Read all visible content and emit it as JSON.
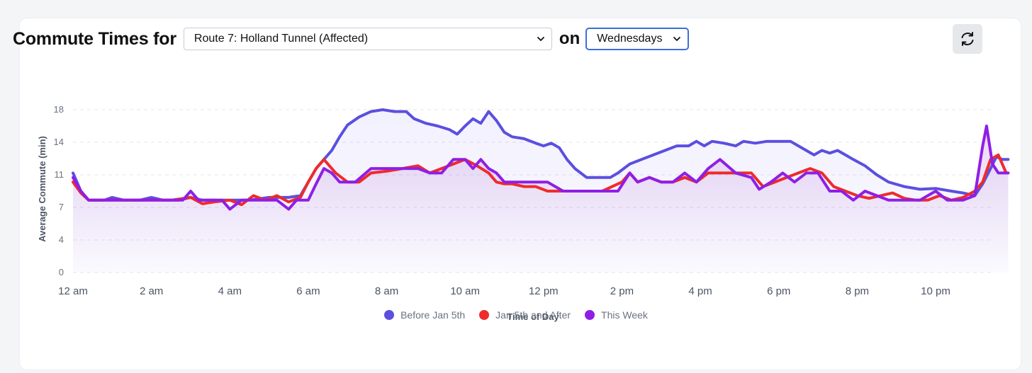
{
  "header": {
    "title": "Commute Times for",
    "route_value": "Route 7: Holland Tunnel (Affected)",
    "on_label": "on",
    "day_value": "Wednesdays"
  },
  "icons": {
    "chevron": "chevron-down-icon",
    "refresh": "refresh-icon"
  },
  "colors": {
    "before": "#5b4fe0",
    "after": "#ef2b2b",
    "this_week": "#8f1ee6",
    "grid": "#e3e4e8"
  },
  "chart_data": {
    "type": "line",
    "title": "Commute Times for Route 7: Holland Tunnel (Affected) on Wednesdays",
    "xlabel": "Time of Day",
    "ylabel": "Average Commute (min)",
    "ylim": [
      0,
      18
    ],
    "grid": true,
    "legend_position": "bottom-center",
    "y_ticks": [
      {
        "label": "0",
        "value": 0
      },
      {
        "label": "4",
        "value": 3.6
      },
      {
        "label": "7",
        "value": 7.2
      },
      {
        "label": "11",
        "value": 10.8
      },
      {
        "label": "14",
        "value": 14.4
      },
      {
        "label": "18",
        "value": 18
      }
    ],
    "x_ticks": [
      {
        "label": "12 am",
        "value": 0
      },
      {
        "label": "2 am",
        "value": 2
      },
      {
        "label": "4 am",
        "value": 4
      },
      {
        "label": "6 am",
        "value": 6
      },
      {
        "label": "8 am",
        "value": 8
      },
      {
        "label": "10 am",
        "value": 10
      },
      {
        "label": "12 pm",
        "value": 12
      },
      {
        "label": "2 pm",
        "value": 14
      },
      {
        "label": "4 pm",
        "value": 16
      },
      {
        "label": "6 pm",
        "value": 18
      },
      {
        "label": "8 pm",
        "value": 20
      },
      {
        "label": "10 pm",
        "value": 22
      }
    ],
    "x_range": [
      0,
      23.5
    ],
    "series": [
      {
        "name": "Before Jan 5th",
        "color": "#5b4fe0",
        "points": [
          [
            0.0,
            11.0
          ],
          [
            0.2,
            9.0
          ],
          [
            0.4,
            8.0
          ],
          [
            0.8,
            8.0
          ],
          [
            1.0,
            8.3
          ],
          [
            1.3,
            8.0
          ],
          [
            1.7,
            8.0
          ],
          [
            2.0,
            8.3
          ],
          [
            2.3,
            8.0
          ],
          [
            2.7,
            8.0
          ],
          [
            3.0,
            8.3
          ],
          [
            3.3,
            8.0
          ],
          [
            3.7,
            8.0
          ],
          [
            4.0,
            8.0
          ],
          [
            4.5,
            8.0
          ],
          [
            5.0,
            8.3
          ],
          [
            5.5,
            8.3
          ],
          [
            5.8,
            8.5
          ],
          [
            6.0,
            10.0
          ],
          [
            6.2,
            11.5
          ],
          [
            6.4,
            12.5
          ],
          [
            6.6,
            13.5
          ],
          [
            6.8,
            15.0
          ],
          [
            7.0,
            16.3
          ],
          [
            7.3,
            17.2
          ],
          [
            7.6,
            17.8
          ],
          [
            7.9,
            18.0
          ],
          [
            8.2,
            17.8
          ],
          [
            8.5,
            17.8
          ],
          [
            8.7,
            17.0
          ],
          [
            9.0,
            16.5
          ],
          [
            9.3,
            16.2
          ],
          [
            9.6,
            15.8
          ],
          [
            9.8,
            15.3
          ],
          [
            10.0,
            16.2
          ],
          [
            10.2,
            17.0
          ],
          [
            10.4,
            16.5
          ],
          [
            10.6,
            17.8
          ],
          [
            10.8,
            16.8
          ],
          [
            11.0,
            15.5
          ],
          [
            11.2,
            15.0
          ],
          [
            11.5,
            14.8
          ],
          [
            11.8,
            14.3
          ],
          [
            12.0,
            14.0
          ],
          [
            12.2,
            14.3
          ],
          [
            12.4,
            13.8
          ],
          [
            12.6,
            12.5
          ],
          [
            12.8,
            11.5
          ],
          [
            13.1,
            10.5
          ],
          [
            13.4,
            10.5
          ],
          [
            13.7,
            10.5
          ],
          [
            13.9,
            11.0
          ],
          [
            14.2,
            12.0
          ],
          [
            14.5,
            12.5
          ],
          [
            14.8,
            13.0
          ],
          [
            15.1,
            13.5
          ],
          [
            15.4,
            14.0
          ],
          [
            15.7,
            14.0
          ],
          [
            15.9,
            14.5
          ],
          [
            16.1,
            14.0
          ],
          [
            16.3,
            14.5
          ],
          [
            16.6,
            14.3
          ],
          [
            16.9,
            14.0
          ],
          [
            17.1,
            14.5
          ],
          [
            17.4,
            14.3
          ],
          [
            17.7,
            14.5
          ],
          [
            18.0,
            14.5
          ],
          [
            18.3,
            14.5
          ],
          [
            18.5,
            14.0
          ],
          [
            18.7,
            13.5
          ],
          [
            18.9,
            13.0
          ],
          [
            19.1,
            13.5
          ],
          [
            19.3,
            13.2
          ],
          [
            19.5,
            13.5
          ],
          [
            19.7,
            13.0
          ],
          [
            19.9,
            12.5
          ],
          [
            20.2,
            11.8
          ],
          [
            20.5,
            10.8
          ],
          [
            20.8,
            10.0
          ],
          [
            21.2,
            9.5
          ],
          [
            21.6,
            9.2
          ],
          [
            22.0,
            9.3
          ],
          [
            22.4,
            9.0
          ],
          [
            22.7,
            8.8
          ],
          [
            23.0,
            8.5
          ],
          [
            23.2,
            9.8
          ],
          [
            23.4,
            11.5
          ],
          [
            23.55,
            12.8
          ],
          [
            23.7,
            12.5
          ],
          [
            23.85,
            12.5
          ]
        ]
      },
      {
        "name": "Jan 5th and After",
        "color": "#ef2b2b",
        "points": [
          [
            0.0,
            10.0
          ],
          [
            0.2,
            8.8
          ],
          [
            0.4,
            8.0
          ],
          [
            1.0,
            8.0
          ],
          [
            1.5,
            8.0
          ],
          [
            2.0,
            8.0
          ],
          [
            2.5,
            8.0
          ],
          [
            3.0,
            8.3
          ],
          [
            3.3,
            7.6
          ],
          [
            3.6,
            7.8
          ],
          [
            4.0,
            8.0
          ],
          [
            4.3,
            7.5
          ],
          [
            4.6,
            8.5
          ],
          [
            4.9,
            8.0
          ],
          [
            5.2,
            8.5
          ],
          [
            5.5,
            7.8
          ],
          [
            5.8,
            8.3
          ],
          [
            6.0,
            10.0
          ],
          [
            6.2,
            11.5
          ],
          [
            6.4,
            12.5
          ],
          [
            6.7,
            11.0
          ],
          [
            7.0,
            10.0
          ],
          [
            7.3,
            10.0
          ],
          [
            7.6,
            11.0
          ],
          [
            8.0,
            11.2
          ],
          [
            8.4,
            11.5
          ],
          [
            8.8,
            11.8
          ],
          [
            9.1,
            11.0
          ],
          [
            9.4,
            11.5
          ],
          [
            9.7,
            12.0
          ],
          [
            10.0,
            12.5
          ],
          [
            10.3,
            11.8
          ],
          [
            10.6,
            11.0
          ],
          [
            10.8,
            10.0
          ],
          [
            11.0,
            9.8
          ],
          [
            11.2,
            9.8
          ],
          [
            11.5,
            9.5
          ],
          [
            11.8,
            9.5
          ],
          [
            12.1,
            9.0
          ],
          [
            12.5,
            9.0
          ],
          [
            13.0,
            9.0
          ],
          [
            13.5,
            9.0
          ],
          [
            14.0,
            10.0
          ],
          [
            14.2,
            11.0
          ],
          [
            14.4,
            10.0
          ],
          [
            14.7,
            10.5
          ],
          [
            15.0,
            10.0
          ],
          [
            15.3,
            10.0
          ],
          [
            15.6,
            10.5
          ],
          [
            15.9,
            10.0
          ],
          [
            16.2,
            11.0
          ],
          [
            16.5,
            11.0
          ],
          [
            16.9,
            11.0
          ],
          [
            17.3,
            11.0
          ],
          [
            17.6,
            9.5
          ],
          [
            17.9,
            10.0
          ],
          [
            18.2,
            10.5
          ],
          [
            18.5,
            11.0
          ],
          [
            18.8,
            11.5
          ],
          [
            19.1,
            11.0
          ],
          [
            19.4,
            9.5
          ],
          [
            19.7,
            9.0
          ],
          [
            20.0,
            8.5
          ],
          [
            20.3,
            8.2
          ],
          [
            20.6,
            8.5
          ],
          [
            20.9,
            8.8
          ],
          [
            21.2,
            8.2
          ],
          [
            21.5,
            8.0
          ],
          [
            21.8,
            8.0
          ],
          [
            22.1,
            8.5
          ],
          [
            22.4,
            8.0
          ],
          [
            22.7,
            8.3
          ],
          [
            23.0,
            9.0
          ],
          [
            23.2,
            10.0
          ],
          [
            23.4,
            12.5
          ],
          [
            23.6,
            13.0
          ],
          [
            23.8,
            11.0
          ]
        ]
      },
      {
        "name": "This Week",
        "color": "#8f1ee6",
        "points": [
          [
            0.0,
            10.5
          ],
          [
            0.2,
            9.0
          ],
          [
            0.4,
            8.0
          ],
          [
            1.0,
            8.0
          ],
          [
            1.5,
            8.0
          ],
          [
            2.0,
            8.0
          ],
          [
            2.5,
            8.0
          ],
          [
            2.8,
            8.0
          ],
          [
            3.0,
            9.0
          ],
          [
            3.2,
            8.0
          ],
          [
            3.5,
            8.0
          ],
          [
            3.8,
            8.0
          ],
          [
            4.0,
            7.0
          ],
          [
            4.3,
            8.0
          ],
          [
            4.8,
            8.0
          ],
          [
            5.2,
            8.0
          ],
          [
            5.5,
            7.0
          ],
          [
            5.7,
            8.0
          ],
          [
            6.0,
            8.0
          ],
          [
            6.2,
            9.8
          ],
          [
            6.4,
            11.5
          ],
          [
            6.6,
            11.0
          ],
          [
            6.8,
            10.0
          ],
          [
            7.2,
            10.0
          ],
          [
            7.6,
            11.5
          ],
          [
            8.0,
            11.5
          ],
          [
            8.4,
            11.5
          ],
          [
            8.8,
            11.5
          ],
          [
            9.1,
            11.0
          ],
          [
            9.4,
            11.0
          ],
          [
            9.7,
            12.5
          ],
          [
            10.0,
            12.5
          ],
          [
            10.2,
            11.5
          ],
          [
            10.4,
            12.5
          ],
          [
            10.6,
            11.5
          ],
          [
            10.8,
            11.0
          ],
          [
            11.0,
            10.0
          ],
          [
            11.2,
            10.0
          ],
          [
            11.5,
            10.0
          ],
          [
            11.8,
            10.0
          ],
          [
            12.1,
            10.0
          ],
          [
            12.5,
            9.0
          ],
          [
            13.0,
            9.0
          ],
          [
            13.5,
            9.0
          ],
          [
            13.9,
            9.0
          ],
          [
            14.2,
            11.0
          ],
          [
            14.4,
            10.0
          ],
          [
            14.7,
            10.5
          ],
          [
            15.0,
            10.0
          ],
          [
            15.3,
            10.0
          ],
          [
            15.6,
            11.0
          ],
          [
            15.9,
            10.0
          ],
          [
            16.2,
            11.5
          ],
          [
            16.5,
            12.5
          ],
          [
            16.9,
            11.0
          ],
          [
            17.3,
            10.5
          ],
          [
            17.5,
            9.2
          ],
          [
            17.8,
            10.0
          ],
          [
            18.1,
            11.0
          ],
          [
            18.4,
            10.0
          ],
          [
            18.7,
            11.0
          ],
          [
            19.0,
            11.0
          ],
          [
            19.3,
            9.0
          ],
          [
            19.6,
            9.0
          ],
          [
            19.9,
            8.0
          ],
          [
            20.2,
            9.0
          ],
          [
            20.5,
            8.5
          ],
          [
            20.8,
            8.0
          ],
          [
            21.2,
            8.0
          ],
          [
            21.6,
            8.0
          ],
          [
            22.0,
            9.0
          ],
          [
            22.3,
            8.0
          ],
          [
            22.7,
            8.0
          ],
          [
            23.0,
            8.5
          ],
          [
            23.2,
            14.0
          ],
          [
            23.3,
            16.2
          ],
          [
            23.45,
            12.0
          ],
          [
            23.6,
            11.0
          ],
          [
            23.85,
            11.0
          ]
        ]
      }
    ]
  },
  "legend": [
    {
      "label": "Before Jan 5th",
      "color": "#5b4fe0"
    },
    {
      "label": "Jan 5th and After",
      "color": "#ef2b2b"
    },
    {
      "label": "This Week",
      "color": "#8f1ee6"
    }
  ]
}
